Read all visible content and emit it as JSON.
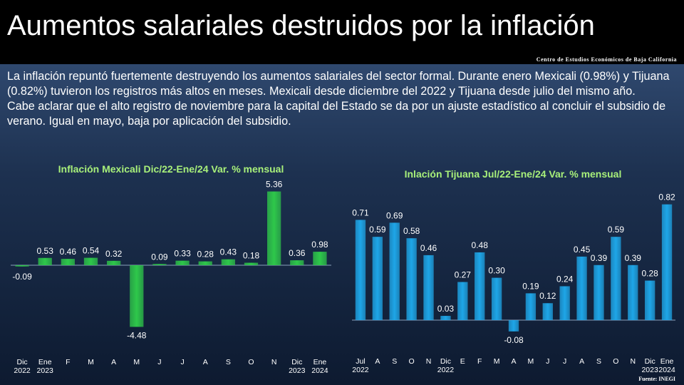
{
  "slide": {
    "title": "Aumentos salariales destruidos por la inflación",
    "org": "Centro de Estudios Económicos de Baja California",
    "paragraph1": "La inflación repuntó fuertemente destruyendo los aumentos salariales del sector formal. Durante enero Mexicali (0.98%) y Tijuana (0.82%) tuvieron los registros más altos en meses. Mexicali desde diciembre del 2022 y Tijuana desde julio del mismo año.",
    "paragraph2": "Cabe aclarar que el alto registro de noviembre para la capital del Estado se da por un ajuste estadístico al concluir el subsidio de verano. Igual en mayo, baja por aplicación del subsidio.",
    "source": "Fuente: INEGI"
  },
  "chart_data": [
    {
      "type": "bar",
      "title": "Inflación Mexicali Dic/22-Ene/24 Var. % mensual",
      "categories": [
        [
          "Dic",
          "2022"
        ],
        [
          "Ene",
          "2023"
        ],
        [
          "F",
          ""
        ],
        [
          "M",
          ""
        ],
        [
          "A",
          ""
        ],
        [
          "M",
          ""
        ],
        [
          "J",
          ""
        ],
        [
          "J",
          ""
        ],
        [
          "A",
          ""
        ],
        [
          "S",
          ""
        ],
        [
          "O",
          ""
        ],
        [
          "N",
          ""
        ],
        [
          "Dic",
          "2023"
        ],
        [
          "Ene",
          "2024"
        ]
      ],
      "values": [
        -0.09,
        0.53,
        0.46,
        0.54,
        0.32,
        -4.48,
        0.09,
        0.33,
        0.28,
        0.43,
        0.18,
        5.36,
        0.36,
        0.98
      ],
      "labels": [
        "-0.09",
        "0.53",
        "0.46",
        "0.54",
        "0.32",
        "-4.48",
        "0.09",
        "0.33",
        "0.28",
        "0.43",
        "0.18",
        "5.36",
        "0.36",
        "0.98"
      ],
      "color": "#2ec84a",
      "grid": false
    },
    {
      "type": "bar",
      "title": "Inlación Tijuana Jul/22-Ene/24 Var. % mensual",
      "categories": [
        [
          "Jul",
          "2022"
        ],
        [
          "A",
          ""
        ],
        [
          "S",
          ""
        ],
        [
          "O",
          ""
        ],
        [
          "N",
          ""
        ],
        [
          "Dic",
          "2022"
        ],
        [
          "E",
          ""
        ],
        [
          "F",
          ""
        ],
        [
          "M",
          ""
        ],
        [
          "A",
          ""
        ],
        [
          "M",
          ""
        ],
        [
          "J",
          ""
        ],
        [
          "J",
          ""
        ],
        [
          "A",
          ""
        ],
        [
          "S",
          ""
        ],
        [
          "O",
          ""
        ],
        [
          "N",
          ""
        ],
        [
          "Dic",
          "2023"
        ],
        [
          "Ene",
          "2024"
        ]
      ],
      "values": [
        0.71,
        0.59,
        0.69,
        0.58,
        0.46,
        0.03,
        0.27,
        0.48,
        0.3,
        -0.08,
        0.19,
        0.12,
        0.24,
        0.45,
        0.39,
        0.59,
        0.39,
        0.28,
        0.82
      ],
      "labels": [
        "0.71",
        "0.59",
        "0.69",
        "0.58",
        "0.46",
        "0.03",
        "0.27",
        "0.48",
        "0.30",
        "-0.08",
        "0.19",
        "0.12",
        "0.24",
        "0.45",
        "0.39",
        "0.59",
        "0.39",
        "0.28",
        "0.82"
      ],
      "color": "#1ea6e8",
      "grid": false
    }
  ]
}
